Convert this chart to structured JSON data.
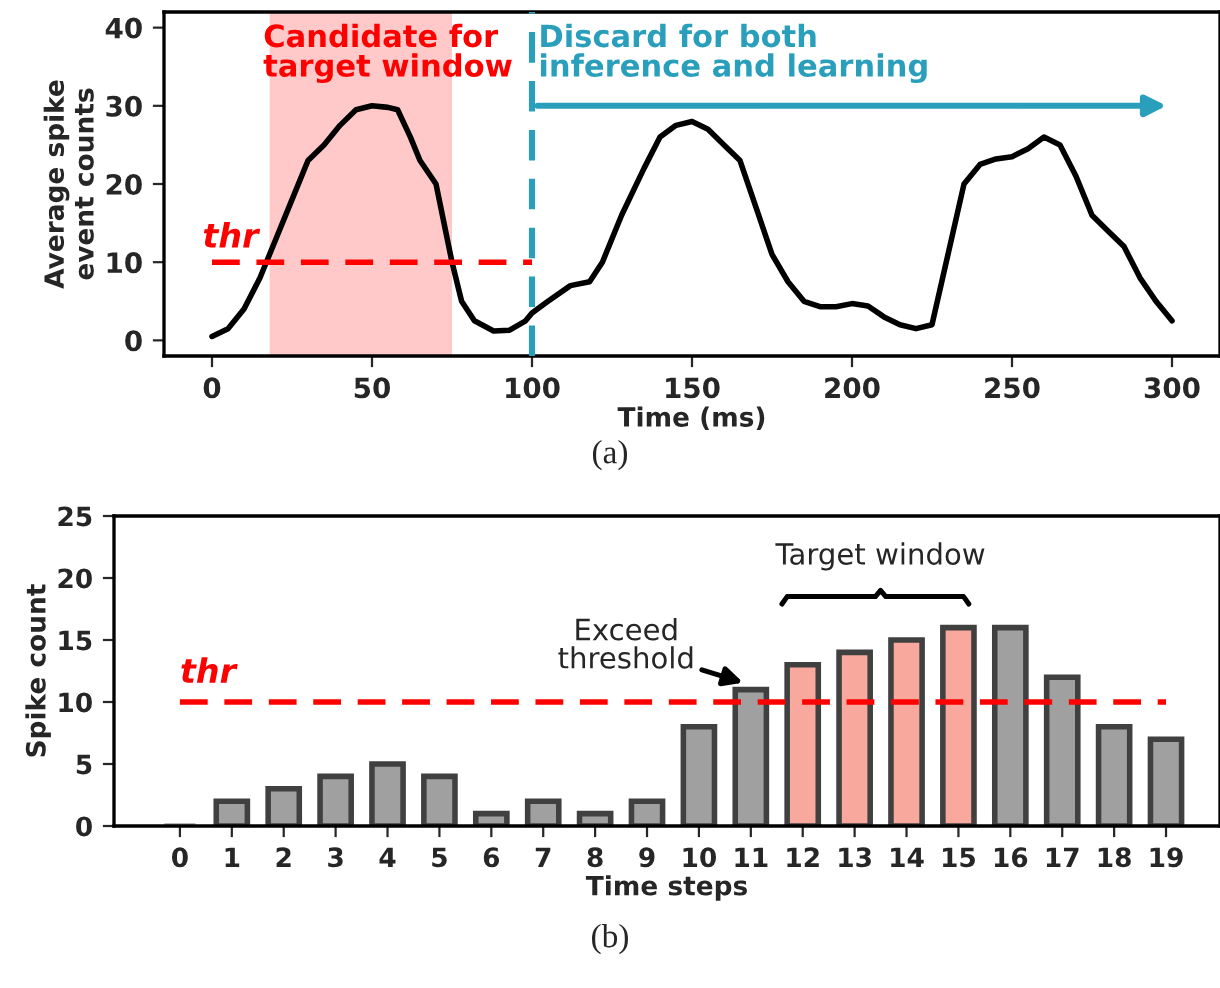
{
  "chart_data": [
    {
      "type": "line",
      "xlabel": "Time (ms)",
      "ylabel": "Average spike\nevent counts",
      "xlim": [
        -15,
        315
      ],
      "ylim": [
        -2,
        42
      ],
      "xticks": [
        0,
        50,
        100,
        150,
        200,
        250,
        300
      ],
      "yticks": [
        0,
        10,
        20,
        30,
        40
      ],
      "grid": false,
      "legend": false,
      "series": [
        {
          "color": "#000000",
          "x": [
            0,
            5,
            10,
            15,
            20,
            25,
            30,
            35,
            40,
            45,
            50,
            55,
            58,
            62,
            65,
            70,
            73,
            75,
            78,
            82,
            88,
            93,
            98,
            100,
            105,
            112,
            118,
            122,
            128,
            135,
            140,
            145,
            150,
            155,
            160,
            165,
            170,
            175,
            180,
            185,
            190,
            195,
            200,
            205,
            210,
            215,
            220,
            225,
            230,
            235,
            240,
            245,
            250,
            255,
            260,
            265,
            270,
            275,
            280,
            285,
            290,
            295,
            300
          ],
          "values": [
            0.5,
            1.5,
            4,
            8,
            13,
            18,
            23,
            25,
            27.5,
            29.5,
            30,
            29.8,
            29.5,
            26,
            23,
            20,
            14,
            10,
            5,
            2.5,
            1.2,
            1.3,
            2.5,
            3.5,
            5,
            7,
            7.5,
            10,
            16,
            22,
            26,
            27.5,
            28,
            27,
            25,
            23,
            17,
            11,
            7.5,
            5,
            4.3,
            4.3,
            4.7,
            4.4,
            3,
            2,
            1.5,
            2,
            11,
            20,
            22.5,
            23.2,
            23.5,
            24.5,
            26,
            25,
            21,
            16,
            14,
            12,
            8,
            5,
            2.5
          ]
        },
        {
          "name": "thr",
          "color": "#ff0000",
          "line_style": "dashed",
          "x": [
            0,
            100
          ],
          "values": [
            10,
            10
          ]
        }
      ],
      "bands": [
        {
          "axis": "x",
          "from": 18,
          "to": 75,
          "label": "Candidate for\ntarget window",
          "color": "#ffc9c9"
        }
      ],
      "ref_lines": [
        {
          "axis": "x",
          "value": 100,
          "label": "Discard for both\ninference and learning",
          "color": "#2a9fbc",
          "line_style": "dashed"
        }
      ],
      "annotations": [
        "(a)"
      ]
    },
    {
      "type": "bar",
      "xlabel": "Time steps",
      "ylabel": "Spike count",
      "categories": [
        "0",
        "1",
        "2",
        "3",
        "4",
        "5",
        "6",
        "7",
        "8",
        "9",
        "10",
        "11",
        "12",
        "13",
        "14",
        "15",
        "16",
        "17",
        "18",
        "19"
      ],
      "values": [
        0,
        2,
        3,
        4,
        5,
        4,
        1,
        2,
        1,
        2,
        8,
        11,
        13,
        14,
        15,
        16,
        16,
        12,
        8,
        7
      ],
      "colors": [
        "#a0a0a0",
        "#a0a0a0",
        "#a0a0a0",
        "#a0a0a0",
        "#a0a0a0",
        "#a0a0a0",
        "#a0a0a0",
        "#a0a0a0",
        "#a0a0a0",
        "#a0a0a0",
        "#a0a0a0",
        "#a0a0a0",
        "#f8a89c",
        "#f8a89c",
        "#f8a89c",
        "#f8a89c",
        "#a0a0a0",
        "#a0a0a0",
        "#a0a0a0",
        "#a0a0a0"
      ],
      "ylim": [
        0,
        25
      ],
      "yticks": [
        0,
        5,
        10,
        15,
        20,
        25
      ],
      "grid": false,
      "ref_lines": [
        {
          "axis": "y",
          "value": 10,
          "label": "thr",
          "color": "#ff0000",
          "line_style": "dashed"
        }
      ],
      "annotations": [
        {
          "text": "Exceed\nthreshold",
          "x": "11",
          "y": 11
        },
        "Target window",
        "(b)"
      ]
    }
  ]
}
